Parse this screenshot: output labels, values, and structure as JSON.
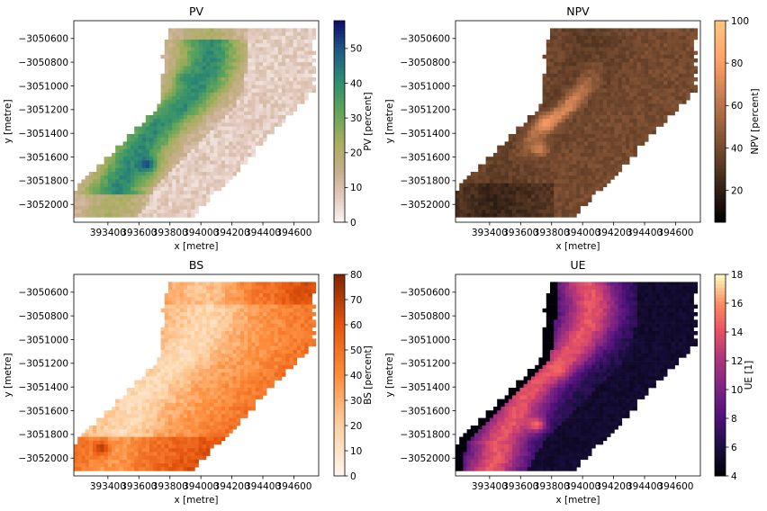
{
  "chart_data": [
    {
      "type": "heatmap",
      "title": "PV",
      "xlabel": "x [metre]",
      "ylabel": "y [metre]",
      "xticks": [
        "393400",
        "393600",
        "393800",
        "394000",
        "394200",
        "394400",
        "394600"
      ],
      "yticks": [
        "-3050600",
        "-3050800",
        "-3051000",
        "-3051200",
        "-3051400",
        "-3051600",
        "-3051800",
        "-3052000"
      ],
      "xlim": [
        393180,
        394760
      ],
      "ylim": [
        -3052150,
        -3050450
      ],
      "colorbar": {
        "label": "PV [percent]",
        "ticks": [
          "0",
          "10",
          "20",
          "30",
          "40",
          "50"
        ],
        "range": [
          0,
          58
        ],
        "colormap": "gist_earth_r"
      },
      "hotspots": [
        {
          "x": 393900,
          "y": -3050930,
          "value": 42
        },
        {
          "x": 393770,
          "y": -3051210,
          "value": 35
        },
        {
          "x": 393650,
          "y": -3051650,
          "value": 55
        }
      ]
    },
    {
      "type": "heatmap",
      "title": "NPV",
      "xlabel": "x [metre]",
      "ylabel": "y [metre]",
      "xticks": [
        "393400",
        "393600",
        "393800",
        "394000",
        "394200",
        "394400",
        "394600"
      ],
      "yticks": [
        "-3050600",
        "-3050800",
        "-3051000",
        "-3051200",
        "-3051400",
        "-3051600",
        "-3051800",
        "-3052000"
      ],
      "xlim": [
        393180,
        394760
      ],
      "ylim": [
        -3052150,
        -3050450
      ],
      "colorbar": {
        "label": "NPV [percent]",
        "ticks": [
          "20",
          "40",
          "60",
          "80",
          "100"
        ],
        "range": [
          5,
          100
        ],
        "colormap": "copper"
      },
      "hotspots": [
        {
          "x": 393760,
          "y": -3051300,
          "value": 80
        },
        {
          "x": 393720,
          "y": -3051520,
          "value": 72
        }
      ]
    },
    {
      "type": "heatmap",
      "title": "BS",
      "xlabel": "x [metre]",
      "ylabel": "y [metre]",
      "xticks": [
        "393400",
        "393600",
        "393800",
        "394000",
        "394200",
        "394400",
        "394600"
      ],
      "yticks": [
        "-3050600",
        "-3050800",
        "-3051000",
        "-3051200",
        "-3051400",
        "-3051600",
        "-3051800",
        "-3052000"
      ],
      "xlim": [
        393180,
        394760
      ],
      "ylim": [
        -3052150,
        -3050450
      ],
      "colorbar": {
        "label": "BS [percent]",
        "ticks": [
          "0",
          "10",
          "20",
          "30",
          "40",
          "50",
          "60",
          "70",
          "80"
        ],
        "range": [
          0,
          80
        ],
        "colormap": "Oranges"
      },
      "hotspots": [
        {
          "x": 393360,
          "y": -3051900,
          "value": 75
        },
        {
          "x": 394620,
          "y": -3050600,
          "value": 65
        }
      ]
    },
    {
      "type": "heatmap",
      "title": "UE",
      "xlabel": "x [metre]",
      "ylabel": "y [metre]",
      "xticks": [
        "393400",
        "393600",
        "393800",
        "394000",
        "394200",
        "394400",
        "394600"
      ],
      "yticks": [
        "-3050600",
        "-3050800",
        "-3051000",
        "-3051200",
        "-3051400",
        "-3051600",
        "-3051800",
        "-3052000"
      ],
      "xlim": [
        393180,
        394760
      ],
      "ylim": [
        -3052150,
        -3050450
      ],
      "colorbar": {
        "label": "UE [1]",
        "ticks": [
          "4",
          "6",
          "8",
          "10",
          "12",
          "14",
          "16",
          "18"
        ],
        "range": [
          4,
          18
        ],
        "colormap": "magma"
      },
      "hotspots": [
        {
          "x": 393850,
          "y": -3051250,
          "value": 15
        },
        {
          "x": 393700,
          "y": -3051700,
          "value": 16
        }
      ]
    }
  ]
}
